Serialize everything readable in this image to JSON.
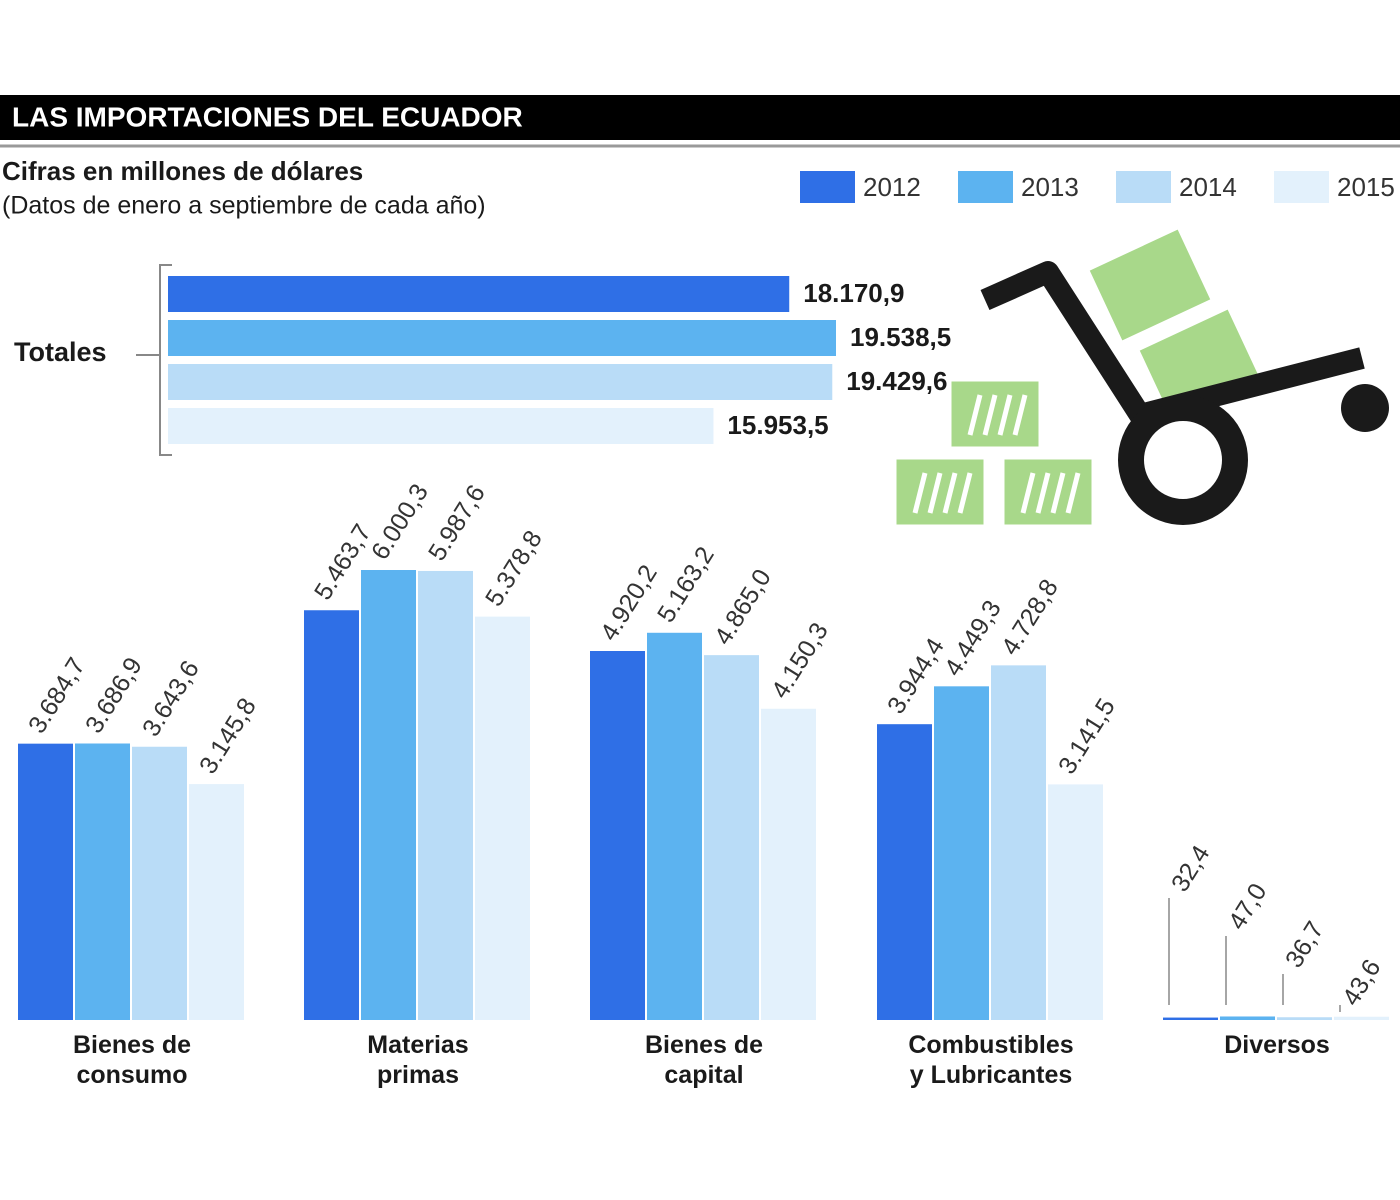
{
  "chart_data": [
    {
      "type": "hbar",
      "title": "LAS IMPORTACIONES DEL ECUADOR",
      "subtitle": "Cifras en millones de dólares",
      "note": "(Datos de enero a septiembre de cada año)",
      "categories": [
        "Totales"
      ],
      "series": [
        {
          "color": "#2f6fe6",
          "values": [
            18170.9
          ],
          "value_labels": [
            "18.170,9"
          ]
        },
        {
          "color": "#5cb3f0",
          "values": [
            19538.5
          ],
          "value_labels": [
            "19.538,5"
          ]
        },
        {
          "color": "#b9dcf7",
          "values": [
            19429.6
          ],
          "value_labels": [
            "19.429,6"
          ]
        },
        {
          "color": "#e3f1fc",
          "values": [
            15953.5
          ],
          "value_labels": [
            "15.953,5"
          ]
        }
      ]
    },
    {
      "type": "bar",
      "categories": [
        "Bienes de consumo",
        "Materias primas",
        "Bienes de capital",
        "Combustibles y Lubricantes",
        "Diversos"
      ],
      "series": [
        {
          "name": "2012",
          "color": "#2f6fe6",
          "values": [
            3684.7,
            5463.7,
            4920.2,
            3944.4,
            32.4
          ],
          "value_labels": [
            "3.684,7",
            "5.463,7",
            "4.920,2",
            "3.944,4",
            "32,4"
          ]
        },
        {
          "name": "2013",
          "color": "#5cb3f0",
          "values": [
            3686.9,
            6000.3,
            5163.2,
            4449.3,
            47.0
          ],
          "value_labels": [
            "3.686,9",
            "6.000,3",
            "5.163,2",
            "4.449,3",
            "47,0"
          ]
        },
        {
          "name": "2014",
          "color": "#b9dcf7",
          "values": [
            3643.6,
            5987.6,
            4865.0,
            4728.8,
            36.7
          ],
          "value_labels": [
            "3.643,6",
            "5.987,6",
            "4.865,0",
            "4.728,8",
            "36,7"
          ]
        },
        {
          "name": "2015",
          "color": "#e3f1fc",
          "values": [
            3145.8,
            5378.8,
            4150.3,
            3141.5,
            43.6
          ],
          "value_labels": [
            "3.145,8",
            "5.378,8",
            "4.150,3",
            "3.141,5",
            "43,6"
          ]
        }
      ]
    }
  ]
}
